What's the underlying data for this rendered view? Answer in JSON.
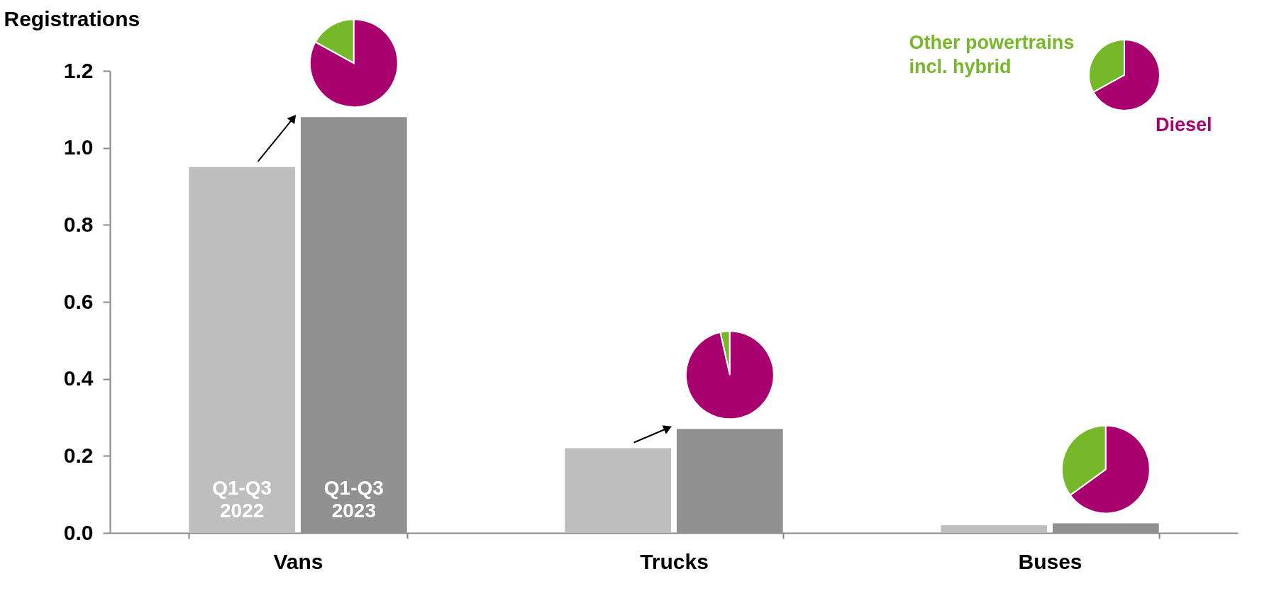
{
  "chart_data": [
    {
      "type": "bar",
      "ylabel": "Registrations",
      "categories": [
        "Vans",
        "Trucks",
        "Buses"
      ],
      "series": [
        {
          "name": "Q1-Q3 2022",
          "color": "#bdbebd",
          "values": [
            0.95,
            0.22,
            0.02
          ]
        },
        {
          "name": "Q1-Q3 2023",
          "color": "#919191",
          "values": [
            1.08,
            0.27,
            0.025
          ]
        }
      ],
      "ylim": [
        0,
        1.2
      ],
      "yticks": [
        {
          "value": 0,
          "label": "0.0"
        },
        {
          "value": 0.2,
          "label": "0.2"
        },
        {
          "value": 0.4,
          "label": "0.4"
        },
        {
          "value": 0.6,
          "label": "0.6"
        },
        {
          "value": 0.8,
          "label": "0.8"
        },
        {
          "value": 1.0,
          "label": "1.0"
        },
        {
          "value": 1.2,
          "label": "1.2"
        }
      ],
      "grid": false
    },
    {
      "type": "pie",
      "categories": [
        null,
        null
      ],
      "values": [
        17,
        83
      ],
      "colors": [
        "#77b82a",
        "#a8006e"
      ]
    },
    {
      "type": "pie",
      "categories": [
        null,
        null
      ],
      "values": [
        3.5,
        96.5
      ],
      "colors": [
        "#77b82a",
        "#a8006e"
      ]
    },
    {
      "type": "pie",
      "categories": [
        null,
        null
      ],
      "values": [
        35,
        65
      ],
      "colors": [
        "#77b82a",
        "#a8006e"
      ]
    },
    {
      "type": "pie",
      "categories": [
        "Other powertrains incl. hybrid",
        "Diesel"
      ],
      "values": [
        33,
        67
      ],
      "colors": [
        "#77b82a",
        "#a8006e"
      ]
    }
  ]
}
